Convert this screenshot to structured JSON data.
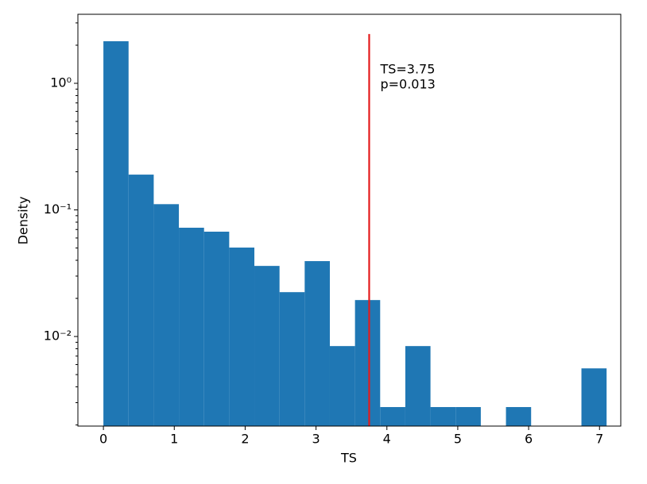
{
  "chart_data": {
    "type": "histogram",
    "xlabel": "TS",
    "ylabel": "Density",
    "bins": [
      0,
      0.355,
      0.71,
      1.065,
      1.42,
      1.775,
      2.13,
      2.485,
      2.84,
      3.195,
      3.55,
      3.905,
      4.26,
      4.615,
      4.97,
      5.325,
      5.68,
      6.035,
      6.39,
      6.745,
      7.1
    ],
    "values": [
      2.15,
      0.19,
      0.111,
      0.0723,
      0.0673,
      0.0504,
      0.0361,
      0.0224,
      0.0394,
      0.0084,
      0.0194,
      0.00277,
      0.0084,
      0.00277,
      0.00277,
      0,
      0.00277,
      0,
      0,
      0.0056
    ],
    "color": "#1f77b4",
    "log_y": true,
    "xlim": [
      -0.36,
      7.3
    ],
    "ylim": [
      0.00196,
      3.51
    ],
    "xticks": [
      0,
      1,
      2,
      3,
      4,
      5,
      6,
      7
    ],
    "yticks": [
      {
        "value": 0.01,
        "label": "10⁻²"
      },
      {
        "value": 0.1,
        "label": "10⁻¹"
      },
      {
        "value": 1,
        "label": "10⁰"
      }
    ],
    "yminorticks": [
      0.002,
      0.003,
      0.004,
      0.005,
      0.006,
      0.007,
      0.008,
      0.009,
      0.02,
      0.03,
      0.04,
      0.05,
      0.06,
      0.07,
      0.08,
      0.09,
      0.2,
      0.3,
      0.4,
      0.5,
      0.6,
      0.7,
      0.8,
      0.9,
      2,
      3
    ],
    "vline": {
      "x": 3.75,
      "ymax": 2.45,
      "color": "#e41a1c"
    },
    "annotations": [
      "TS=3.75",
      "p=0.013"
    ]
  }
}
